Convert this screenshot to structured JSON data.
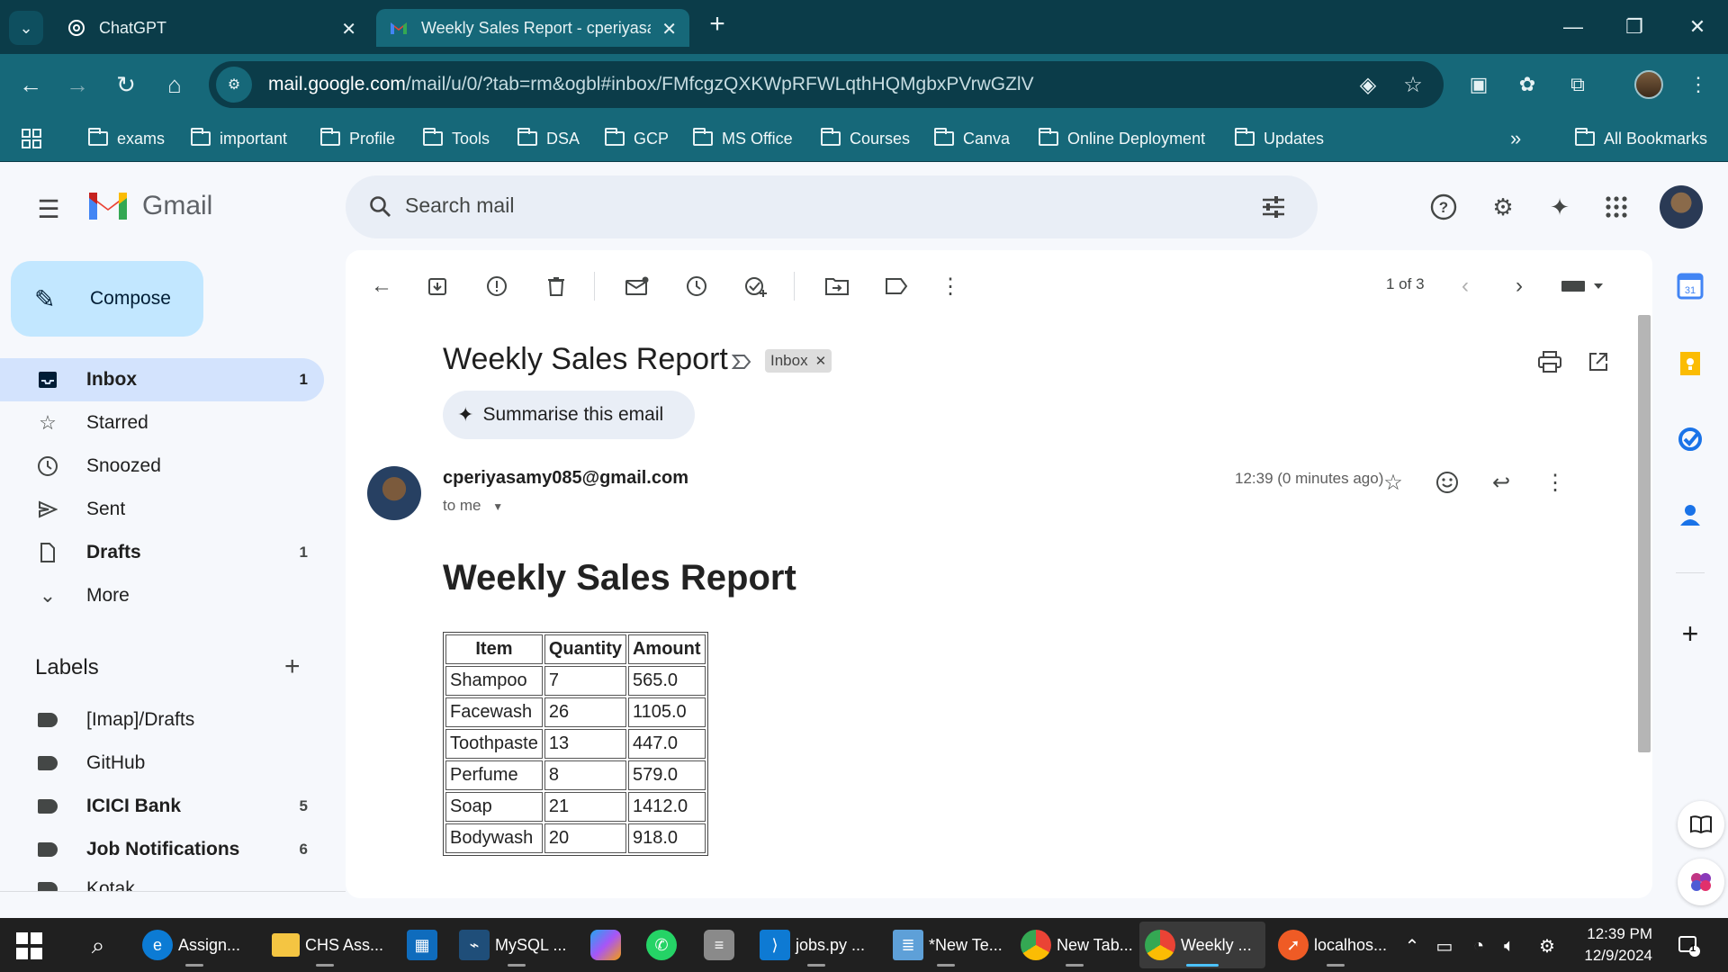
{
  "browser": {
    "tabs": [
      {
        "title": "ChatGPT",
        "icon": "chatgpt-icon"
      },
      {
        "title": "Weekly Sales Report - cperiyasa",
        "icon": "gmail-icon",
        "active": true
      }
    ],
    "url_host": "mail.google.com",
    "url_path": "/mail/u/0/?tab=rm&ogbl#inbox/FMfcgzQXKWpRFWLqthHQMgbxPVrwGZlV",
    "bookmarks": [
      "exams",
      "important",
      "Profile",
      "Tools",
      "DSA",
      "GCP",
      "MS Office",
      "Courses",
      "Canva",
      "Online Deployment",
      "Updates"
    ],
    "bookmarks_overflow": "»",
    "all_bookmarks": "All Bookmarks",
    "theme_color": "#166879"
  },
  "gmail": {
    "app_name": "Gmail",
    "search_placeholder": "Search mail",
    "compose_label": "Compose",
    "nav": [
      {
        "label": "Inbox",
        "count": "1",
        "icon": "inbox-icon"
      },
      {
        "label": "Starred",
        "count": "",
        "icon": "star-icon"
      },
      {
        "label": "Snoozed",
        "count": "",
        "icon": "clock-icon"
      },
      {
        "label": "Sent",
        "count": "",
        "icon": "send-icon"
      },
      {
        "label": "Drafts",
        "count": "1",
        "icon": "draft-icon"
      },
      {
        "label": "More",
        "count": "",
        "icon": "chevron-down-icon"
      }
    ],
    "labels_title": "Labels",
    "labels": [
      {
        "label": "[Imap]/Drafts",
        "count": ""
      },
      {
        "label": "GitHub",
        "count": ""
      },
      {
        "label": "ICICI Bank",
        "count": "5"
      },
      {
        "label": "Job Notifications",
        "count": "6"
      },
      {
        "label": "Kotak",
        "count": ""
      }
    ],
    "pager": "1 of 3",
    "email": {
      "subject": "Weekly Sales Report",
      "chip": "Inbox",
      "summarise": "Summarise this email",
      "sender": "cperiyasamy085@gmail.com",
      "to": "to me",
      "time": "12:39 (0 minutes ago)",
      "body_title": "Weekly Sales Report",
      "table": {
        "headers": [
          "Item",
          "Quantity",
          "Amount"
        ],
        "rows": [
          [
            "Shampoo",
            "7",
            "565.0"
          ],
          [
            "Facewash",
            "26",
            "1105.0"
          ],
          [
            "Toothpaste",
            "13",
            "447.0"
          ],
          [
            "Perfume",
            "8",
            "579.0"
          ],
          [
            "Soap",
            "21",
            "1412.0"
          ],
          [
            "Bodywash",
            "20",
            "918.0"
          ]
        ]
      }
    }
  },
  "taskbar": {
    "items": [
      {
        "label": "Assign...",
        "icon": "edge-icon"
      },
      {
        "label": "CHS Ass...",
        "icon": "folder-icon"
      },
      {
        "label": "",
        "icon": "store-icon"
      },
      {
        "label": "MySQL ...",
        "icon": "mysql-icon"
      },
      {
        "label": "",
        "icon": "copilot-icon"
      },
      {
        "label": "",
        "icon": "whatsapp-icon"
      },
      {
        "label": "",
        "icon": "database-icon"
      },
      {
        "label": "jobs.py ...",
        "icon": "vscode-icon"
      },
      {
        "label": "*New Te...",
        "icon": "notepad-icon"
      },
      {
        "label": "New Tab...",
        "icon": "chrome-icon"
      },
      {
        "label": "Weekly ...",
        "icon": "chrome-icon",
        "active": true
      },
      {
        "label": "localhos...",
        "icon": "postman-icon"
      }
    ],
    "time": "12:39 PM",
    "date": "12/9/2024",
    "notification_count": "1"
  }
}
